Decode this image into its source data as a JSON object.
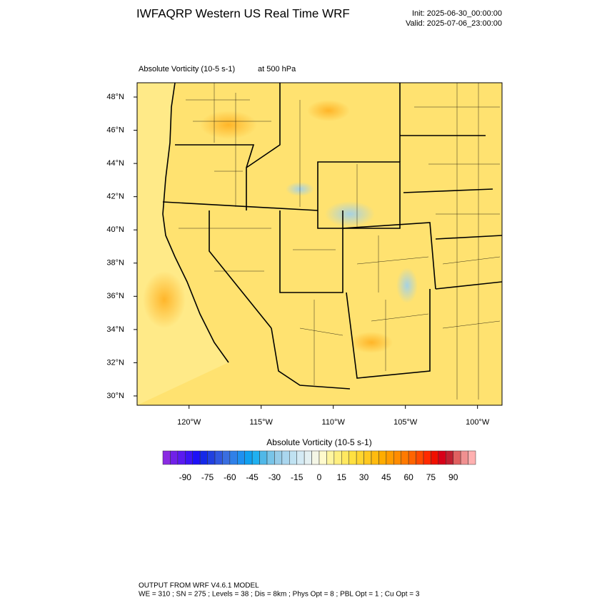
{
  "header": {
    "title": "IWFAQRP Western US Real Time WRF",
    "init": "Init: 2025-06-30_00:00:00",
    "valid": "Valid: 2025-07-06_23:00:00"
  },
  "plot": {
    "field": "Absolute Vorticity   (10-5 s-1)",
    "level": "at   500 hPa",
    "latlim": [
      29.44,
      48.86
    ],
    "lonlim": [
      -123.6,
      -98.3
    ],
    "latticks": [
      {
        "value": 30,
        "label": "30°N"
      },
      {
        "value": 32,
        "label": "32°N"
      },
      {
        "value": 34,
        "label": "34°N"
      },
      {
        "value": 36,
        "label": "36°N"
      },
      {
        "value": 38,
        "label": "38°N"
      },
      {
        "value": 40,
        "label": "40°N"
      },
      {
        "value": 42,
        "label": "42°N"
      },
      {
        "value": 44,
        "label": "44°N"
      },
      {
        "value": 46,
        "label": "46°N"
      },
      {
        "value": 48,
        "label": "48°N"
      }
    ],
    "lonticks": [
      {
        "value": -120,
        "label": "120°W"
      },
      {
        "value": -115,
        "label": "115°W"
      },
      {
        "value": -110,
        "label": "110°W"
      },
      {
        "value": -105,
        "label": "105°W"
      },
      {
        "value": -100,
        "label": "100°W"
      }
    ]
  },
  "colorbar": {
    "title": "Absolute Vorticity  (10-5 s-1)",
    "lim": [
      -105,
      105
    ],
    "step": 5,
    "ticks": [
      -90,
      -75,
      -60,
      -45,
      -30,
      -15,
      0,
      15,
      30,
      45,
      60,
      75,
      90
    ],
    "colors": [
      "#8a2be2",
      "#7020e8",
      "#5a1af0",
      "#3c14f5",
      "#1e10f8",
      "#1428e8",
      "#2040e0",
      "#3058e0",
      "#3a6ee0",
      "#2f80e8",
      "#1e90f0",
      "#10a0f0",
      "#20b0f0",
      "#50b8e8",
      "#78c4e8",
      "#96cce8",
      "#aad6ee",
      "#c0e2f2",
      "#d4eaf4",
      "#e4f0f2",
      "#f4f6e6",
      "#fffacd",
      "#fff5a0",
      "#ffef80",
      "#ffe860",
      "#ffe040",
      "#ffd530",
      "#ffc820",
      "#ffbb10",
      "#ffac00",
      "#ff9c00",
      "#ff8c00",
      "#ff7a00",
      "#ff6400",
      "#ff4a00",
      "#ff2a00",
      "#f01000",
      "#d80018",
      "#c02030",
      "#e06060",
      "#f09090",
      "#ffb0b0"
    ]
  },
  "footer": {
    "line1": "OUTPUT FROM WRF V4.6.1 MODEL",
    "line2": "WE = 310 ; SN = 275 ; Levels = 38 ; Dis = 8km ; Phys Opt = 8 ; PBL Opt = 1 ; Cu Opt = 3"
  }
}
